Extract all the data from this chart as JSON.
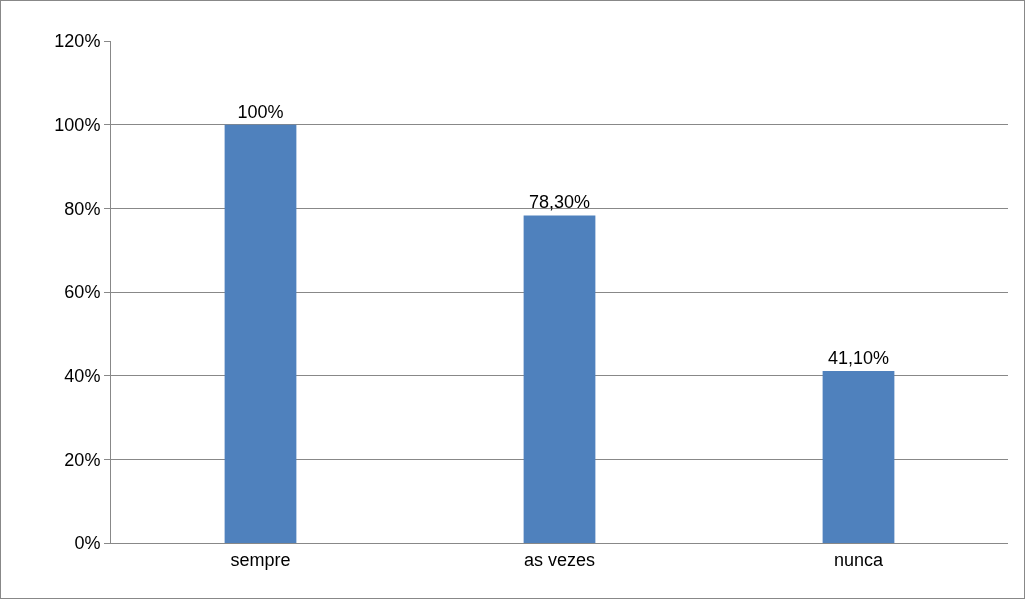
{
  "chart_data": {
    "type": "bar",
    "categories": [
      "sempre",
      "as vezes",
      "nunca"
    ],
    "values": [
      100,
      78.3,
      41.1
    ],
    "value_labels": [
      "100%",
      "78,30%",
      "41,10%"
    ],
    "color": "#4f81bd",
    "ylim": [
      0,
      120
    ],
    "yticks": [
      {
        "value": 0,
        "label": "0%"
      },
      {
        "value": 20,
        "label": "20%"
      },
      {
        "value": 40,
        "label": "40%"
      },
      {
        "value": 60,
        "label": "60%"
      },
      {
        "value": 80,
        "label": "80%"
      },
      {
        "value": 100,
        "label": "100%"
      },
      {
        "value": 120,
        "label": "120%"
      }
    ],
    "grid": "y"
  }
}
